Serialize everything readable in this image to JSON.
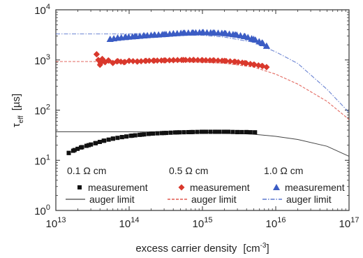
{
  "chart_data": {
    "type": "scatter",
    "title": "",
    "xlabel": "excess carrier density",
    "xlabel_unit": "[cm",
    "xlabel_unit_sup": "-3",
    "xlabel_unit_close": "]",
    "ylabel": "τ",
    "ylabel_sub": "eff",
    "ylabel_unit": "[µs]",
    "xscale": "log",
    "yscale": "log",
    "xlim": [
      10000000000000.0,
      1e+17
    ],
    "ylim": [
      1,
      10000
    ],
    "grid": false,
    "legend_position": "bottom",
    "x_ticks": [
      {
        "value": 10000000000000.0,
        "base": "10",
        "exp": "13"
      },
      {
        "value": 100000000000000.0,
        "base": "10",
        "exp": "14"
      },
      {
        "value": 1000000000000000.0,
        "base": "10",
        "exp": "15"
      },
      {
        "value": 1e+16,
        "base": "10",
        "exp": "16"
      },
      {
        "value": 1e+17,
        "base": "10",
        "exp": "17"
      }
    ],
    "y_ticks": [
      {
        "value": 1,
        "base": "10",
        "exp": "0"
      },
      {
        "value": 10,
        "base": "10",
        "exp": "1"
      },
      {
        "value": 100,
        "base": "10",
        "exp": "2"
      },
      {
        "value": 1000,
        "base": "10",
        "exp": "3"
      },
      {
        "value": 10000,
        "base": "10",
        "exp": "4"
      }
    ],
    "series": [
      {
        "group": "0.1 Ω cm",
        "color": "#111111",
        "marker": "square",
        "measurement_label": "measurement",
        "auger_label": "auger limit",
        "measurement": {
          "x": [
            15000000000000.0,
            18000000000000.0,
            22000000000000.0,
            28000000000000.0,
            35000000000000.0,
            45000000000000.0,
            60000000000000.0,
            80000000000000.0,
            110000000000000.0,
            150000000000000.0,
            200000000000000.0,
            300000000000000.0,
            450000000000000.0,
            700000000000000.0,
            1000000000000000.0,
            1500000000000000.0,
            2200000000000000.0,
            3000000000000000.0,
            4000000000000000.0,
            5200000000000000.0
          ],
          "y": [
            14,
            16,
            18,
            20,
            22,
            24.5,
            27,
            29,
            31,
            32.5,
            34,
            35,
            36,
            36.5,
            37,
            37,
            37,
            36.5,
            36.5,
            36
          ]
        },
        "auger": {
          "x": [
            10000000000000.0,
            100000000000000.0,
            1000000000000000.0,
            2000000000000000.0,
            5000000000000000.0,
            1e+16,
            2e+16,
            5e+16,
            1e+17
          ],
          "y": [
            37,
            37,
            36,
            35,
            33,
            30,
            26,
            19,
            12
          ]
        }
      },
      {
        "group": "0.5 Ω cm",
        "color": "#d9382c",
        "marker": "diamond",
        "measurement_label": "measurement",
        "auger_label": "auger limit",
        "measurement": {
          "x": [
            36000000000000.0,
            38000000000000.0,
            40000000000000.0,
            43000000000000.0,
            47000000000000.0,
            52000000000000.0,
            60000000000000.0,
            70000000000000.0,
            85000000000000.0,
            100000000000000.0,
            130000000000000.0,
            170000000000000.0,
            220000000000000.0,
            300000000000000.0,
            400000000000000.0,
            550000000000000.0,
            750000000000000.0,
            1000000000000000.0,
            1400000000000000.0,
            2000000000000000.0,
            2800000000000000.0,
            3800000000000000.0,
            5000000000000000.0,
            6500000000000000.0,
            7500000000000000.0
          ],
          "y": [
            1300,
            1000,
            800,
            1050,
            900,
            980,
            870,
            950,
            900,
            960,
            930,
            960,
            970,
            980,
            990,
            1000,
            1000,
            990,
            980,
            960,
            920,
            870,
            810,
            760,
            720
          ]
        },
        "auger": {
          "x": [
            10000000000000.0,
            100000000000000.0,
            500000000000000.0,
            1000000000000000.0,
            2000000000000000.0,
            5000000000000000.0,
            1e+16,
            2e+16,
            5e+16,
            1e+17
          ],
          "y": [
            930,
            930,
            920,
            900,
            860,
            720,
            520,
            330,
            150,
            65
          ]
        }
      },
      {
        "group": "1.0 Ω cm",
        "color": "#3b5cc4",
        "marker": "triangle",
        "measurement_label": "measurement",
        "auger_label": "auger limit",
        "measurement": {
          "x": [
            55000000000000.0,
            70000000000000.0,
            90000000000000.0,
            120000000000000.0,
            160000000000000.0,
            220000000000000.0,
            300000000000000.0,
            400000000000000.0,
            550000000000000.0,
            750000000000000.0,
            1000000000000000.0,
            1400000000000000.0,
            2000000000000000.0,
            2800000000000000.0,
            3800000000000000.0,
            5000000000000000.0,
            6500000000000000.0,
            7500000000000000.0
          ],
          "y": [
            2600,
            2750,
            2850,
            2950,
            3050,
            3150,
            3250,
            3350,
            3450,
            3500,
            3550,
            3500,
            3400,
            3200,
            2950,
            2600,
            2200,
            1900
          ]
        },
        "auger": {
          "x": [
            10000000000000.0,
            100000000000000.0,
            500000000000000.0,
            1000000000000000.0,
            2000000000000000.0,
            5000000000000000.0,
            1e+16,
            2e+16,
            5e+16,
            1e+17
          ],
          "y": [
            3300,
            3300,
            3200,
            3100,
            2850,
            2250,
            1450,
            850,
            260,
            90
          ]
        }
      }
    ]
  }
}
